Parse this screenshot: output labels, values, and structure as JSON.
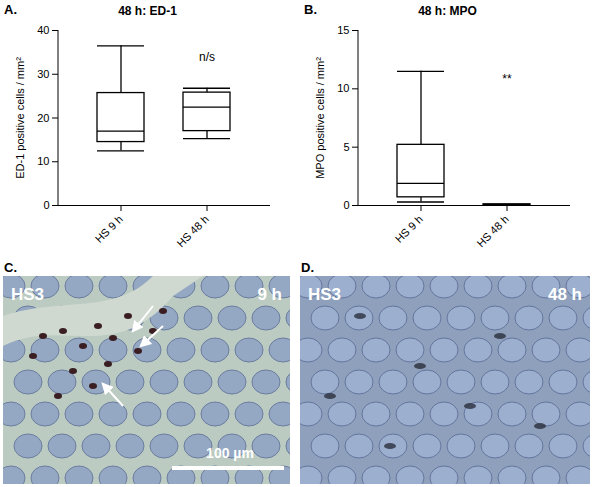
{
  "chart_data": [
    {
      "type": "box",
      "title": "48 h: ED-1",
      "y_label": "ED-1 positive cells / mm²",
      "categories": [
        "HS 9 h",
        "HS 48 h"
      ],
      "values": [
        {
          "min": 12.5,
          "q1": 14.5,
          "median": 17,
          "q3": 25.7,
          "max": 36.5
        },
        {
          "min": 15.3,
          "q1": 17,
          "median": 22.5,
          "q3": 25.8,
          "max": 26.8
        }
      ],
      "ylim": [
        0,
        40
      ],
      "yticks": [
        0,
        10,
        20,
        30,
        40
      ],
      "color": "#000000",
      "annotations": [
        {
          "text": "A."
        },
        {
          "text": "n/s",
          "category": "HS 48 h",
          "y": 34
        }
      ]
    },
    {
      "type": "box",
      "title": "48 h: MPO",
      "y_label": "MPO positive cells / mm²",
      "categories": [
        "HS 9 h",
        "HS 48 h"
      ],
      "values": [
        {
          "min": 0.3,
          "q1": 0.7,
          "median": 1.9,
          "q3": 5.2,
          "max": 11.5
        },
        {
          "min": 0,
          "q1": 0,
          "median": 0.05,
          "q3": 0.1,
          "max": 0.1
        }
      ],
      "ylim": [
        0,
        15
      ],
      "yticks": [
        0,
        5,
        10,
        15
      ],
      "color": "#000000",
      "annotations": [
        {
          "text": "B."
        },
        {
          "text": "**",
          "category": "HS 48 h",
          "y": 10.8
        }
      ]
    }
  ],
  "images": [
    {
      "panel": "C.",
      "labels": [
        "HS3",
        "9 h"
      ],
      "scale_bar": "100 µm"
    },
    {
      "panel": "D.",
      "labels": [
        "HS3",
        "48 h"
      ]
    }
  ]
}
